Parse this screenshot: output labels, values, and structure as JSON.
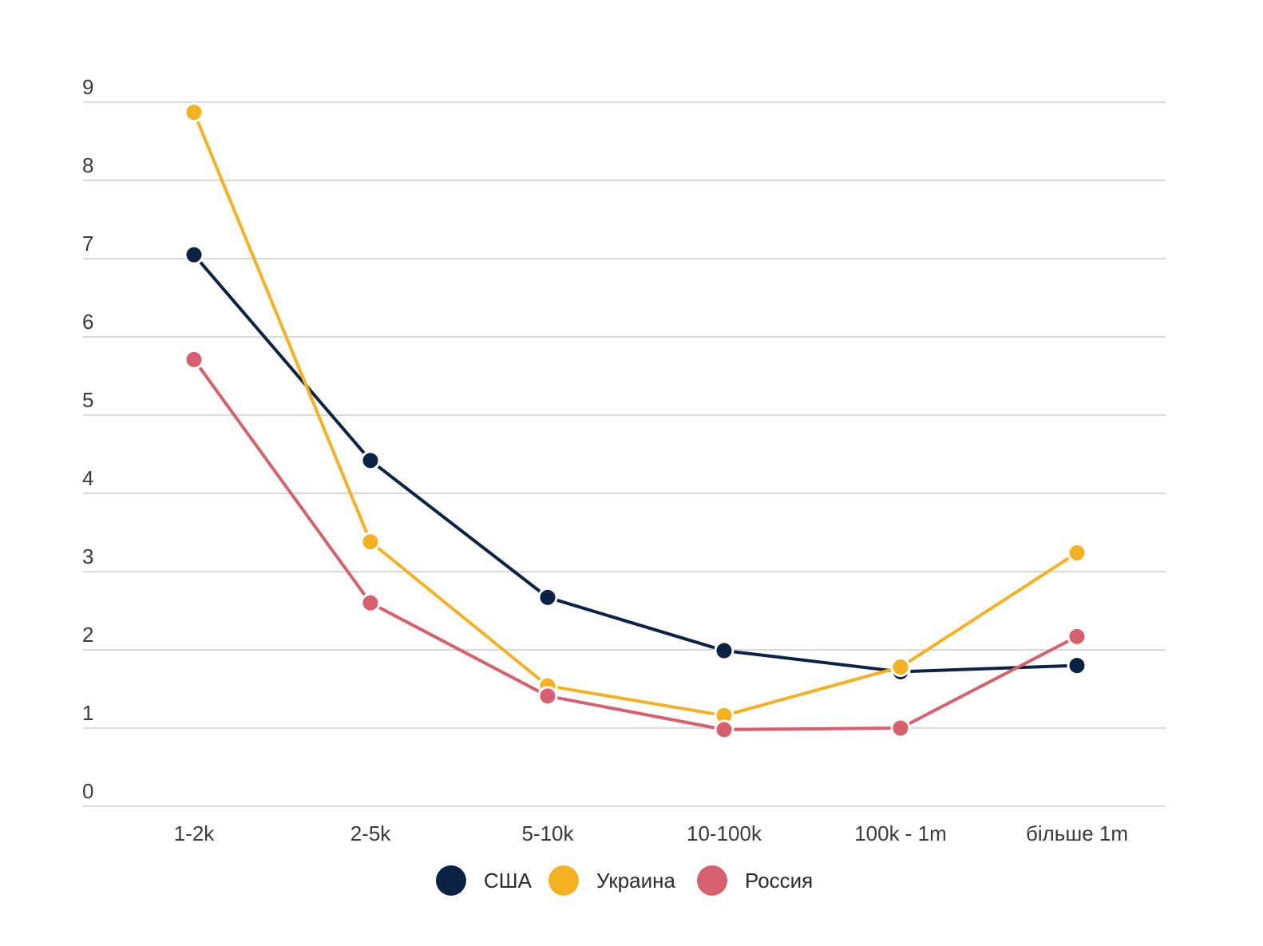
{
  "chart_data": {
    "type": "line",
    "title": "",
    "xlabel": "",
    "ylabel": "",
    "categories": [
      "1-2k",
      "2-5k",
      "5-10k",
      "10-100k",
      "100k - 1m",
      "більше 1m"
    ],
    "ylim": [
      0,
      9
    ],
    "yticks": [
      "0",
      "1",
      "2",
      "3",
      "4",
      "5",
      "6",
      "7",
      "8",
      "9"
    ],
    "grid": true,
    "legend_position": "bottom-center",
    "series": [
      {
        "name": "США",
        "color": "#0b2245",
        "values": [
          7.05,
          4.42,
          2.67,
          1.99,
          1.72,
          1.8
        ]
      },
      {
        "name": "Украина",
        "color": "#f4b223",
        "values": [
          8.87,
          3.38,
          1.54,
          1.16,
          1.78,
          3.24
        ]
      },
      {
        "name": "Россия",
        "color": "#d6606d",
        "values": [
          5.71,
          2.6,
          1.41,
          0.98,
          1.0,
          2.17
        ]
      }
    ]
  }
}
